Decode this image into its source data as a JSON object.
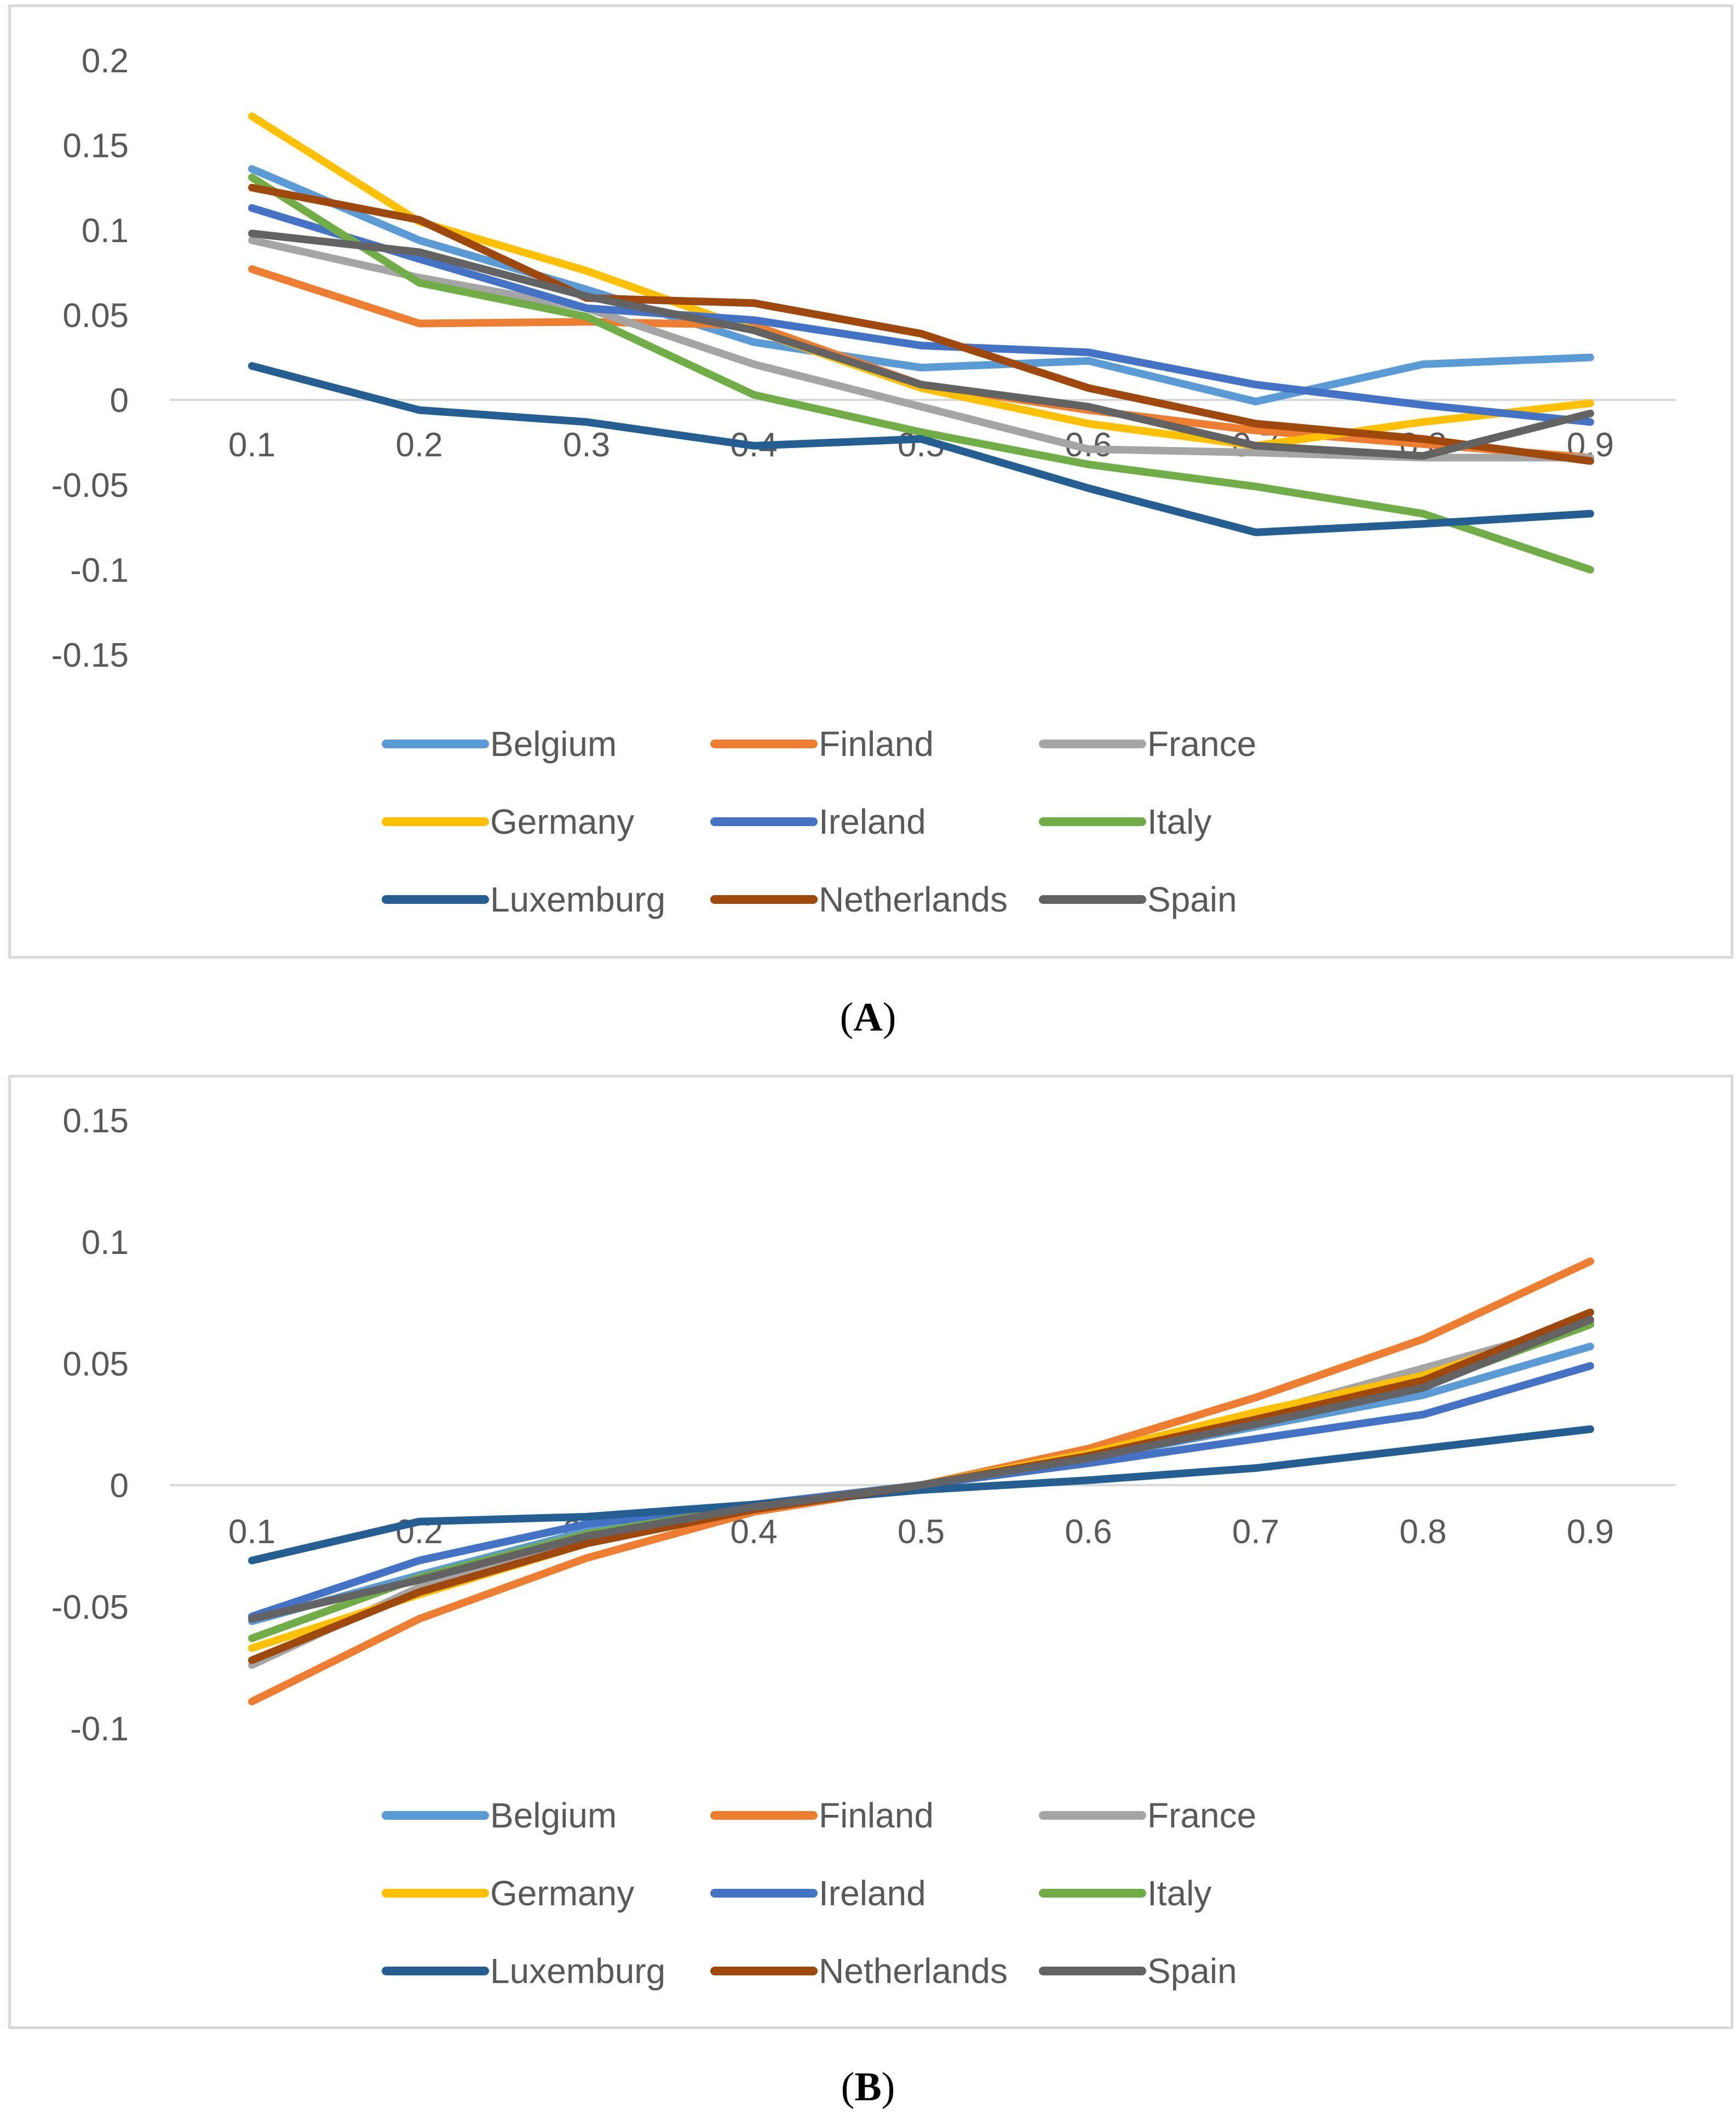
{
  "colors": {
    "Belgium": "#5B9BD5",
    "Finland": "#ED7D31",
    "France": "#A5A5A5",
    "Germany": "#FFC000",
    "Ireland": "#4472C4",
    "Italy": "#70AD47",
    "Luxemburg": "#255E91",
    "Netherlands": "#9E480E",
    "Spain": "#636363"
  },
  "chart_data": [
    {
      "type": "line",
      "panel_label": "A",
      "categories": [
        "0.1",
        "0.2",
        "0.3",
        "0.4",
        "0.5",
        "0.6",
        "0.7",
        "0.8",
        "0.9"
      ],
      "yticks": [
        "0.2",
        "0.15",
        "0.1",
        "0.05",
        "0",
        "-0.05",
        "-0.1",
        "-0.15"
      ],
      "ylim": [
        -0.15,
        0.2
      ],
      "legend_position": "bottom",
      "series": [
        {
          "name": "Belgium",
          "values": [
            0.136,
            0.094,
            0.065,
            0.034,
            0.019,
            0.023,
            -0.001,
            0.021,
            0.025
          ]
        },
        {
          "name": "Finland",
          "values": [
            0.077,
            0.045,
            0.046,
            0.044,
            0.009,
            -0.006,
            -0.018,
            -0.026,
            -0.034
          ]
        },
        {
          "name": "France",
          "values": [
            0.094,
            0.072,
            0.054,
            0.021,
            -0.004,
            -0.029,
            -0.031,
            -0.034,
            -0.034
          ]
        },
        {
          "name": "Germany",
          "values": [
            0.167,
            0.105,
            0.076,
            0.041,
            0.007,
            -0.014,
            -0.027,
            -0.013,
            -0.002
          ]
        },
        {
          "name": "Ireland",
          "values": [
            0.113,
            0.083,
            0.054,
            0.047,
            0.032,
            0.028,
            0.009,
            -0.003,
            -0.013
          ]
        },
        {
          "name": "Italy",
          "values": [
            0.131,
            0.069,
            0.049,
            0.003,
            -0.019,
            -0.038,
            -0.051,
            -0.067,
            -0.1
          ]
        },
        {
          "name": "Luxemburg",
          "values": [
            0.02,
            -0.006,
            -0.013,
            -0.027,
            -0.023,
            -0.052,
            -0.078,
            -0.073,
            -0.067
          ]
        },
        {
          "name": "Netherlands",
          "values": [
            0.125,
            0.106,
            0.06,
            0.057,
            0.039,
            0.007,
            -0.014,
            -0.023,
            -0.036
          ]
        },
        {
          "name": "Spain",
          "values": [
            0.098,
            0.087,
            0.061,
            0.041,
            0.009,
            -0.004,
            -0.027,
            -0.033,
            -0.008
          ]
        }
      ]
    },
    {
      "type": "line",
      "panel_label": "B",
      "categories": [
        "0.1",
        "0.2",
        "0.3",
        "0.4",
        "0.5",
        "0.6",
        "0.7",
        "0.8",
        "0.9"
      ],
      "yticks": [
        "0.15",
        "0.1",
        "0.05",
        "0",
        "-0.05",
        "-0.1"
      ],
      "ylim": [
        -0.1,
        0.15
      ],
      "legend_position": "bottom",
      "series": [
        {
          "name": "Belgium",
          "values": [
            -0.056,
            -0.037,
            -0.019,
            -0.009,
            0.0,
            0.011,
            0.024,
            0.037,
            0.057
          ]
        },
        {
          "name": "Finland",
          "values": [
            -0.089,
            -0.055,
            -0.03,
            -0.011,
            0.0,
            0.015,
            0.036,
            0.06,
            0.092
          ]
        },
        {
          "name": "France",
          "values": [
            -0.074,
            -0.042,
            -0.022,
            -0.01,
            0.0,
            0.013,
            0.029,
            0.048,
            0.067
          ]
        },
        {
          "name": "Germany",
          "values": [
            -0.067,
            -0.045,
            -0.024,
            -0.01,
            0.0,
            0.013,
            0.03,
            0.045,
            0.068
          ]
        },
        {
          "name": "Ireland",
          "values": [
            -0.054,
            -0.031,
            -0.016,
            -0.008,
            0.0,
            0.009,
            0.019,
            0.029,
            0.049
          ]
        },
        {
          "name": "Italy",
          "values": [
            -0.063,
            -0.038,
            -0.02,
            -0.009,
            0.0,
            0.012,
            0.026,
            0.041,
            0.066
          ]
        },
        {
          "name": "Luxemburg",
          "values": [
            -0.031,
            -0.015,
            -0.013,
            -0.008,
            -0.002,
            0.002,
            0.007,
            0.015,
            0.023
          ]
        },
        {
          "name": "Netherlands",
          "values": [
            -0.072,
            -0.044,
            -0.024,
            -0.01,
            0.0,
            0.012,
            0.027,
            0.043,
            0.071
          ]
        },
        {
          "name": "Spain",
          "values": [
            -0.055,
            -0.039,
            -0.021,
            -0.009,
            0.0,
            0.011,
            0.025,
            0.04,
            0.068
          ]
        }
      ]
    }
  ]
}
